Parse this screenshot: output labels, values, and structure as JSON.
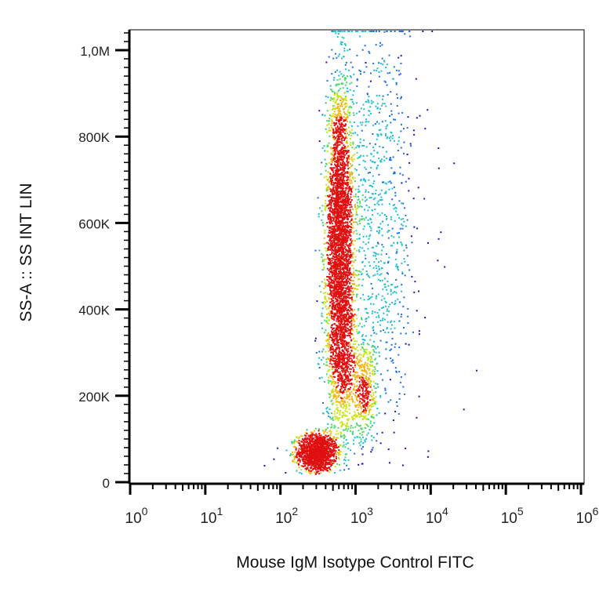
{
  "chart_data": {
    "type": "scatter",
    "xlabel": "Mouse IgM Isotype Control FITC",
    "ylabel": "SS-A :: SS INT LIN",
    "x_scale": "log",
    "xlim": [
      1,
      1000000
    ],
    "ylim": [
      0,
      1050000
    ],
    "x_ticks": [
      {
        "value": 1,
        "base": "10",
        "exp": "0"
      },
      {
        "value": 10,
        "base": "10",
        "exp": "1"
      },
      {
        "value": 100,
        "base": "10",
        "exp": "2"
      },
      {
        "value": 1000,
        "base": "10",
        "exp": "3"
      },
      {
        "value": 10000,
        "base": "10",
        "exp": "4"
      },
      {
        "value": 100000,
        "base": "10",
        "exp": "5"
      },
      {
        "value": 1000000,
        "base": "10",
        "exp": "6"
      }
    ],
    "y_ticks": [
      {
        "value": 0,
        "label": "0"
      },
      {
        "value": 200000,
        "label": "200K"
      },
      {
        "value": 400000,
        "label": "400K"
      },
      {
        "value": 600000,
        "label": "600K"
      },
      {
        "value": 800000,
        "label": "800K"
      },
      {
        "value": 1000000,
        "label": "1,0M"
      }
    ],
    "populations": [
      {
        "x_center": 300,
        "y_center": 70000,
        "x_spread_log": 0.13,
        "y_spread": 22000,
        "events": 1400,
        "peak_color": "#e01010"
      },
      {
        "x_center": 600,
        "y_center": 580000,
        "x_spread_log": 0.09,
        "y_spread": 170000,
        "events": 3200,
        "peak_color": "#9cd81e"
      },
      {
        "x_center": 650,
        "y_center": 300000,
        "x_spread_log": 0.11,
        "y_spread": 110000,
        "events": 900,
        "peak_color": "#2bb8c8"
      },
      {
        "x_center": 1300,
        "y_center": 210000,
        "x_spread_log": 0.08,
        "y_spread": 60000,
        "events": 400,
        "peak_color": "#1fbfd0"
      },
      {
        "x_center": 2000,
        "y_center": 600000,
        "x_spread_log": 0.25,
        "y_spread": 250000,
        "events": 900,
        "peak_color": "#1a2fd8"
      }
    ],
    "outliers": [
      [
        7000,
        850000
      ],
      [
        20000,
        740000
      ],
      [
        15000,
        500000
      ],
      [
        40000,
        260000
      ],
      [
        27000,
        170000
      ],
      [
        9000,
        60000
      ],
      [
        4500,
        80000
      ],
      [
        60,
        40000
      ],
      [
        80,
        55000
      ]
    ],
    "colors": {
      "sparse": "#1414c8",
      "low": "#1e6ee6",
      "mid_low": "#1fbfd0",
      "mid": "#4fd86a",
      "mid_high": "#c8e614",
      "high": "#f0b414",
      "peak": "#e01010"
    },
    "grid": false
  }
}
